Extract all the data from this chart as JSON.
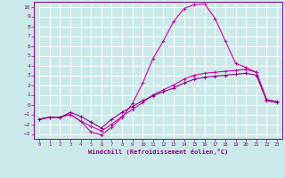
{
  "xlabel": "Windchill (Refroidissement éolien,°C)",
  "ylabel": "",
  "xlim": [
    -0.5,
    23.5
  ],
  "ylim": [
    -3.5,
    10.5
  ],
  "xticks": [
    0,
    1,
    2,
    3,
    4,
    5,
    6,
    7,
    8,
    9,
    10,
    11,
    12,
    13,
    14,
    15,
    16,
    17,
    18,
    19,
    20,
    21,
    22,
    23
  ],
  "yticks": [
    -3,
    -2,
    -1,
    0,
    1,
    2,
    3,
    4,
    5,
    6,
    7,
    8,
    9,
    10
  ],
  "background_color": "#cce9e9",
  "grid_color": "#ffffff",
  "line_color": "#cc00aa",
  "line_color2": "#880088",
  "curve1_x": [
    0,
    1,
    2,
    3,
    4,
    5,
    6,
    7,
    8,
    9,
    10,
    11,
    12,
    13,
    14,
    15,
    16,
    17,
    18,
    19,
    20,
    21,
    22,
    23
  ],
  "curve1_y": [
    -1.5,
    -1.3,
    -1.3,
    -1.0,
    -1.7,
    -2.8,
    -3.1,
    -2.3,
    -1.3,
    0.1,
    2.2,
    4.7,
    6.5,
    8.5,
    9.8,
    10.2,
    10.3,
    8.8,
    6.5,
    4.2,
    3.8,
    3.3,
    0.5,
    0.3
  ],
  "curve2_x": [
    0,
    1,
    2,
    3,
    4,
    5,
    6,
    7,
    8,
    9,
    10,
    11,
    12,
    13,
    14,
    15,
    16,
    17,
    18,
    19,
    20,
    21,
    22,
    23
  ],
  "curve2_y": [
    -1.5,
    -1.3,
    -1.3,
    -1.0,
    -1.7,
    -2.2,
    -2.7,
    -2.0,
    -1.2,
    -0.5,
    0.2,
    1.0,
    1.5,
    2.0,
    2.6,
    3.0,
    3.2,
    3.3,
    3.4,
    3.5,
    3.6,
    3.3,
    0.5,
    0.3
  ],
  "curve3_x": [
    0,
    1,
    2,
    3,
    4,
    5,
    6,
    7,
    8,
    9,
    10,
    11,
    12,
    13,
    14,
    15,
    16,
    17,
    18,
    19,
    20,
    21,
    22,
    23
  ],
  "curve3_y": [
    -1.5,
    -1.3,
    -1.3,
    -0.8,
    -1.2,
    -1.8,
    -2.4,
    -1.5,
    -0.8,
    -0.2,
    0.4,
    0.9,
    1.3,
    1.7,
    2.2,
    2.6,
    2.8,
    2.9,
    3.0,
    3.1,
    3.2,
    3.0,
    0.4,
    0.2
  ]
}
